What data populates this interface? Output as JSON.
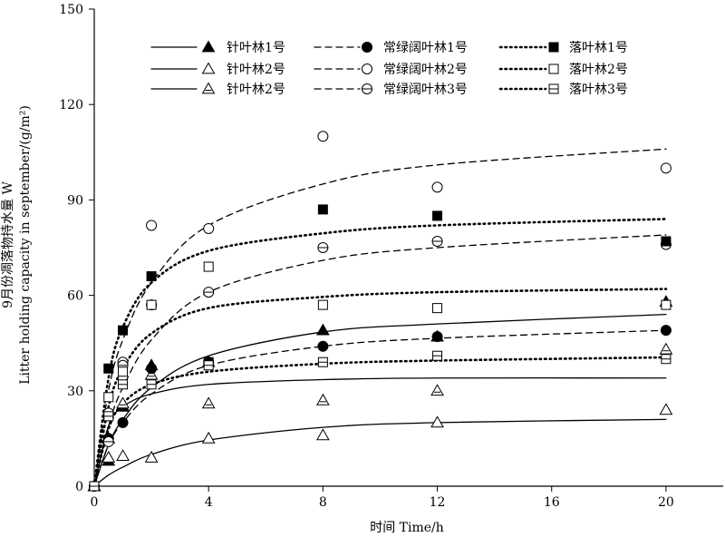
{
  "chart_data": {
    "type": "scatter",
    "xlabel": "时间 Time/h",
    "ylabel_cn": "9月份凋落物持水量 W",
    "ylabel_en": "Litter holding capacity in september/(g/m²)",
    "xlim": [
      0,
      22
    ],
    "ylim": [
      0,
      150
    ],
    "xticks": [
      0,
      4,
      8,
      12,
      16,
      20
    ],
    "yticks": [
      0,
      30,
      60,
      90,
      120,
      150
    ],
    "grid": false,
    "legend_position": "top",
    "x": [
      0,
      0.5,
      1,
      2,
      4,
      8,
      12,
      20
    ],
    "series": [
      {
        "name": "针叶林1号",
        "line": "solid",
        "marker": "triangle-filled",
        "values": [
          0,
          8,
          25,
          38,
          39,
          49,
          47,
          58
        ],
        "fit": [
          0,
          13,
          21,
          31,
          41,
          48.5,
          51,
          54
        ]
      },
      {
        "name": "针叶林2号",
        "line": "solid",
        "marker": "triangle-open",
        "values": [
          0,
          9,
          9.5,
          9,
          15,
          16,
          20,
          24
        ],
        "fit": [
          0,
          3.5,
          6,
          10,
          14.5,
          18.5,
          20,
          21
        ]
      },
      {
        "name": "针叶林2号",
        "line": "solid",
        "marker": "triangle-bar",
        "values": [
          0,
          15,
          26,
          35,
          26,
          27,
          30,
          43
        ],
        "fit": [
          0,
          19,
          25,
          29,
          32,
          33.5,
          34,
          34
        ]
      },
      {
        "name": "常绿阔叶林1号",
        "line": "dashed",
        "marker": "circle-filled",
        "values": [
          0,
          15,
          20,
          37,
          39,
          44,
          47,
          49
        ],
        "fit": [
          0,
          13,
          20,
          29,
          38,
          44,
          46.5,
          49
        ]
      },
      {
        "name": "常绿阔叶林2号",
        "line": "dashed",
        "marker": "circle-open",
        "values": [
          0,
          23,
          39,
          82,
          81,
          110,
          94,
          100
        ],
        "fit": [
          0,
          30,
          46,
          64,
          82,
          95,
          101,
          106
        ]
      },
      {
        "name": "常绿阔叶林3号",
        "line": "dashed",
        "marker": "circle-bar",
        "values": [
          0,
          14,
          38,
          57,
          61,
          75,
          77,
          76
        ],
        "fit": [
          0,
          19,
          31,
          46,
          61,
          71,
          75,
          79
        ]
      },
      {
        "name": "落叶林1号",
        "line": "dotted",
        "marker": "square-filled",
        "values": [
          0,
          37,
          49,
          66,
          39,
          87,
          85,
          77
        ],
        "fit": [
          0,
          34,
          50,
          64,
          74,
          79.5,
          82,
          84
        ]
      },
      {
        "name": "落叶林2号",
        "line": "dotted",
        "marker": "square-open",
        "values": [
          0,
          28,
          36,
          57,
          69,
          57,
          56,
          57
        ],
        "fit": [
          0,
          25,
          37,
          48,
          56,
          59.5,
          61,
          62
        ]
      },
      {
        "name": "落叶林3号",
        "line": "dotted",
        "marker": "square-bar",
        "values": [
          0,
          22,
          32,
          32,
          38,
          39,
          41,
          40
        ],
        "fit": [
          0,
          18,
          26,
          32,
          36,
          38.5,
          39.5,
          40.5
        ]
      }
    ]
  }
}
